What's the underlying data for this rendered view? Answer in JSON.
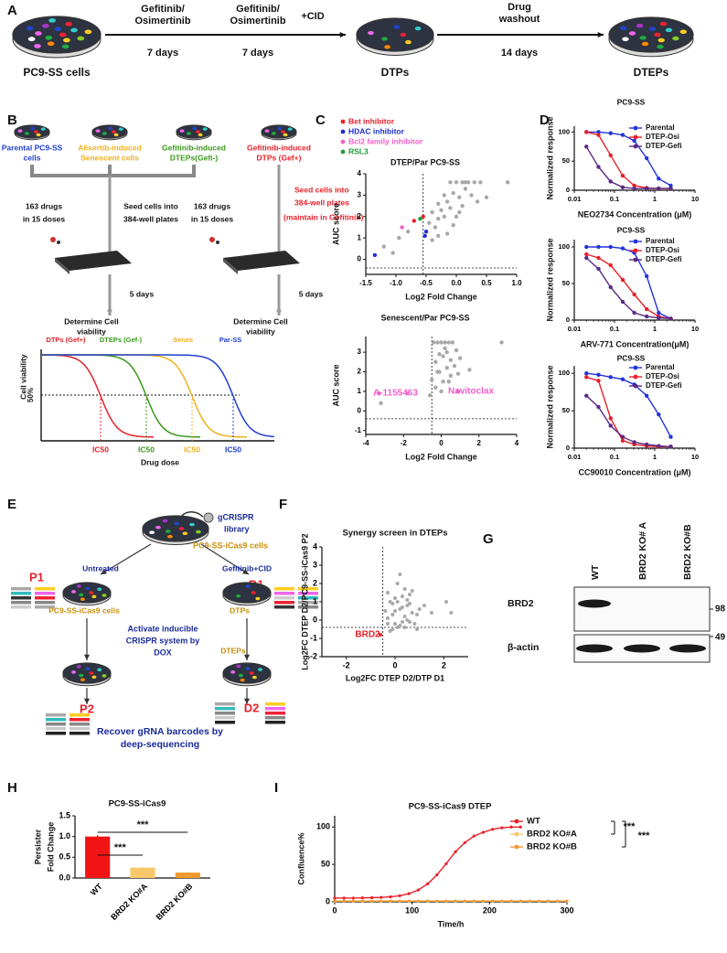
{
  "panel_a": {
    "label": "A",
    "start": "PC9-SS cells",
    "step1": [
      "Gefitinib/",
      "Osimertinib"
    ],
    "step1_time": "7 days",
    "step2": [
      "Gefitinib/",
      "Osimertinib"
    ],
    "step2_extra": "+CID",
    "step2_time": "7 days",
    "step3": [
      "Drug",
      "washout"
    ],
    "step3_time": "14 days",
    "mid": "DTPs",
    "end": "DTEPs"
  },
  "panel_b": {
    "label": "B",
    "groups": [
      [
        "Parental PC9-SS",
        "cells"
      ],
      [
        "Alisertib-induced",
        "Senescent cells"
      ],
      [
        "Gefitinib-induced",
        "DTEPs(Gefi-)"
      ],
      [
        "Gefitinib-induced",
        "DTPs (Gef+)"
      ]
    ],
    "drugs_left": [
      "163 drugs",
      "in 15 doses"
    ],
    "seed_left": [
      "Seed cells into",
      "384-well plates"
    ],
    "drugs_right": [
      "163 drugs",
      "in 15 doses"
    ],
    "seed_right": [
      "Seed cells into",
      "384-well plates",
      "(maintain in Gefitinib)"
    ],
    "days_left": "5 days",
    "days_right": "5 days",
    "determine_left": [
      "Determine Cell",
      "viability"
    ],
    "determine_right": [
      "Determine Cell",
      "viability"
    ],
    "curves": [
      "DTPs (Gef+)",
      "DTEPs (Gef-)",
      "Senes",
      "Par-SS"
    ],
    "ylabel": "Cell viability",
    "half": "50%",
    "ic50": [
      "IC50",
      "IC50",
      "IC50",
      "IC50"
    ],
    "xlabel": "Drug dose"
  },
  "panel_c": {
    "label": "C",
    "charts": [
      {
        "type": "scatter",
        "title": "DTEP/Par PC9-SS",
        "xlabel": "Log2 Fold Change",
        "ylabel": "AUC score",
        "xlim": [
          -1.5,
          1.0
        ],
        "ylim": [
          -0.7,
          4
        ],
        "xticks": [
          -1.5,
          {
            "value": -1,
            "label": "-1.0"
          },
          -0.5,
          {
            "value": 0,
            "label": "0.0"
          },
          0.5,
          {
            "value": 1,
            "label": "1.0"
          }
        ],
        "yticks": [
          0,
          1,
          2,
          3,
          4
        ],
        "ref_x": -0.55,
        "ref_y": -0.4,
        "series": [
          {
            "color": "#a9a9a9",
            "x": [
              -1.2,
              -1.05,
              -0.95,
              -0.8,
              -0.45,
              -0.4,
              -0.35,
              -0.3,
              -0.3,
              -0.25,
              -0.2,
              -0.2,
              -0.15,
              -0.1,
              -0.1,
              -0.05,
              0,
              0,
              0.05,
              0.1,
              0.1,
              0.15,
              0.2,
              0.25,
              0.3,
              0.35,
              0.4,
              -0.15,
              -0.05,
              0.05,
              0.15,
              0.5,
              0.85,
              -0.4,
              -0.3
            ],
            "values": [
              0.6,
              0.3,
              1.0,
              1.3,
              1.7,
              2.2,
              1.5,
              2.6,
              1.9,
              2.3,
              3.0,
              2.0,
              2.7,
              3.6,
              2.4,
              3.1,
              3.6,
              2.0,
              2.9,
              3.6,
              2.5,
              3.3,
              3.6,
              3.0,
              3.6,
              2.7,
              3.6,
              1.2,
              1.6,
              2.2,
              3.6,
              2.9,
              3.6,
              0.9,
              1.1
            ]
          },
          {
            "name": "Bet inhibitor",
            "color": "#e8202a",
            "x": [
              -0.7,
              -0.55
            ],
            "values": [
              1.8,
              2.0
            ]
          },
          {
            "name": "HDAC inhibitor",
            "color": "#1f2fd0",
            "x": [
              -1.35,
              -0.5,
              -0.52
            ],
            "values": [
              0.2,
              1.3,
              1.1
            ]
          },
          {
            "name": "Bcl2 family inhibitor",
            "color": "#f060c8",
            "x": [
              -0.9
            ],
            "values": [
              1.5
            ]
          },
          {
            "name": "RSL3",
            "color": "#1f9a3a",
            "x": [
              -0.6
            ],
            "values": [
              1.9
            ]
          }
        ]
      },
      {
        "type": "scatter",
        "title": "Senescent/Par PC9-SS",
        "xlabel": "Log2 Fold Change",
        "ylabel": "AUC score",
        "xlim": [
          -4,
          4
        ],
        "ylim": [
          -1.2,
          3.8
        ],
        "xticks": [
          -4,
          -2,
          0,
          2,
          4
        ],
        "yticks": [
          -1,
          0,
          1,
          2,
          3
        ],
        "ref_x": -0.5,
        "ref_y": -0.4,
        "series": [
          {
            "color": "#a9a9a9",
            "x": [
              -3.2,
              -1.8,
              -0.5,
              -0.4,
              -0.3,
              -0.2,
              -0.1,
              0,
              0.1,
              0.2,
              0.3,
              0.4,
              0.5,
              0.6,
              -0.3,
              -0.1,
              0.1,
              0.3,
              0.5,
              0.7,
              0.9,
              -0.2,
              0.2,
              0.4,
              1.0,
              1.5,
              3.2,
              -0.6,
              0.0,
              0.8
            ],
            "values": [
              0.4,
              0.9,
              1.6,
              3.5,
              2.5,
              3.5,
              2.0,
              3.5,
              2.8,
              3.5,
              2.2,
              3.5,
              1.8,
              3.5,
              1.2,
              2.9,
              1.5,
              3.0,
              2.6,
              2.3,
              1.9,
              2.0,
              3.2,
              1.5,
              2.7,
              2.1,
              3.5,
              0.8,
              1.0,
              3.1
            ]
          },
          {
            "color": "#f060c8",
            "x": [
              -3.3,
              0.9
            ],
            "values": [
              0.9,
              1.0
            ]
          }
        ],
        "annotations": [
          "A-1155463",
          "Navitoclax"
        ]
      }
    ]
  },
  "panel_d": {
    "label": "D",
    "charts": [
      {
        "type": "line",
        "title": "PC9-SS",
        "xlabel": "NEO2734 Concentration (μM)",
        "ylabel": "Normalized response",
        "log_x": true,
        "markers": true,
        "xlim": [
          0.01,
          10
        ],
        "ylim": [
          0,
          110
        ],
        "xticks": [
          0.01,
          0.1,
          1,
          10
        ],
        "yticks": [
          0,
          50,
          100
        ],
        "x": [
          0.02,
          0.04,
          0.08,
          0.16,
          0.31,
          0.63,
          1.25,
          2.5
        ],
        "series": [
          {
            "name": "Parental",
            "color": "#2233dd",
            "values": [
              100,
              100,
              98,
              95,
              85,
              55,
              20,
              8
            ]
          },
          {
            "name": "DTEP-Osi",
            "color": "#e8202a",
            "values": [
              100,
              95,
              60,
              25,
              8,
              4,
              3,
              3
            ]
          },
          {
            "name": "DTEP-Gefi",
            "color": "#5b2a86",
            "values": [
              75,
              40,
              15,
              5,
              3,
              3,
              3,
              3
            ]
          }
        ]
      },
      {
        "type": "line",
        "title": "PC9-SS",
        "xlabel": "ARV-771 Concentration(μM)",
        "ylabel": "Normalized response",
        "log_x": true,
        "markers": true,
        "xlim": [
          0.01,
          10
        ],
        "ylim": [
          0,
          110
        ],
        "xticks": [
          0.01,
          0.1,
          1,
          10
        ],
        "yticks": [
          0,
          50,
          100
        ],
        "x": [
          0.02,
          0.04,
          0.08,
          0.16,
          0.31,
          0.63,
          1.25,
          2.5
        ],
        "series": [
          {
            "name": "Parental",
            "color": "#2233dd",
            "values": [
              100,
              100,
              100,
              98,
              92,
              60,
              10,
              2
            ]
          },
          {
            "name": "DTEP-Osi",
            "color": "#e8202a",
            "values": [
              90,
              85,
              75,
              55,
              35,
              15,
              5,
              2
            ]
          },
          {
            "name": "DTEP-Gefi",
            "color": "#5b2a86",
            "values": [
              85,
              70,
              45,
              25,
              10,
              5,
              3,
              2
            ]
          }
        ]
      },
      {
        "type": "line",
        "title": "PC9-SS",
        "xlabel": "CC90010 Concentration (μM)",
        "ylabel": "Normalized response",
        "log_x": true,
        "markers": true,
        "xlim": [
          0.01,
          10
        ],
        "ylim": [
          0,
          110
        ],
        "xticks": [
          0.01,
          0.1,
          1,
          10
        ],
        "yticks": [
          0,
          50,
          100
        ],
        "x": [
          0.02,
          0.04,
          0.08,
          0.16,
          0.31,
          0.63,
          1.25,
          2.5
        ],
        "series": [
          {
            "name": "Parental",
            "color": "#2233dd",
            "values": [
              100,
              98,
              95,
              92,
              85,
              70,
              45,
              15
            ]
          },
          {
            "name": "DTEP-Osi",
            "color": "#e8202a",
            "values": [
              95,
              90,
              40,
              10,
              5,
              3,
              2,
              2
            ]
          },
          {
            "name": "DTEP-Gefi",
            "color": "#5b2a86",
            "values": [
              70,
              55,
              30,
              15,
              8,
              5,
              3,
              2
            ]
          }
        ]
      }
    ]
  },
  "panel_e": {
    "label": "E",
    "library": [
      "gCRISPR",
      "library"
    ],
    "cells_top": "PC9-SS-iCas9 cells",
    "untreated": "Untreated",
    "treated": "Gefitinib+CID",
    "p1": "P1",
    "d1": "D1",
    "cells_left": "PC9-SS-iCas9 cells",
    "dtps": "DTPs",
    "activate": [
      "Activate inducible",
      "CRISPR system by",
      "DOX"
    ],
    "dteps": "DTEPs",
    "p2": "P2",
    "d2": "D2",
    "recover": [
      "Recover gRNA barcodes by",
      "deep-sequencing"
    ]
  },
  "panel_f": {
    "label": "F",
    "chart": {
      "type": "scatter",
      "title": "Synergy screen in DTEPs",
      "xlabel": "Log2FC DTEP D2/DTP D1",
      "ylabel": "Log2FC DTEP D2/PC9-SS-iCas9 P2",
      "xlim": [
        -3,
        3
      ],
      "ylim": [
        -2,
        4
      ],
      "xticks": [
        -2,
        0,
        2
      ],
      "yticks": [
        -2,
        -1,
        0,
        1,
        2,
        3,
        4
      ],
      "ref_x": -0.5,
      "ref_y": -0.4,
      "series": [
        {
          "color": "#a9a9a9",
          "x": [
            -0.4,
            -0.3,
            -0.2,
            -0.1,
            0,
            0.1,
            0.2,
            0.3,
            0.4,
            0.5,
            0.6,
            0.7,
            -0.3,
            -0.1,
            0.1,
            0.3,
            0.5,
            0.7,
            0.9,
            -0.2,
            0,
            0.2,
            0.4,
            0.6,
            0.8,
            1.0,
            -0.1,
            0.1,
            0.3,
            0.5,
            1.2,
            1.5,
            0.2,
            0.4,
            -0.3,
            0,
            0.6,
            2.1,
            2.3,
            0.9
          ],
          "values": [
            0.5,
            -0.2,
            1.0,
            0.3,
            1.2,
            -0.4,
            0.6,
            1.3,
            0.2,
            0.8,
            -0.1,
            0.4,
            1.5,
            -0.5,
            2.0,
            0.7,
            1.1,
            1.6,
            0.3,
            -0.6,
            0.5,
            -0.3,
            1.7,
            0.9,
            -0.2,
            0.6,
            0.9,
            1.0,
            -0.1,
            0.0,
            0.8,
            0.4,
            2.5,
            -0.4,
            0.1,
            -0.2,
            1.4,
            1.0,
            0.4,
            -0.5
          ]
        },
        {
          "color": "#e8202a",
          "x": [
            -0.6
          ],
          "values": [
            -0.8
          ]
        }
      ],
      "annotations": [
        "BRD2"
      ]
    }
  },
  "panel_g": {
    "label": "G",
    "lanes": [
      "WT",
      "BRD2 KO# A",
      "BRD2 KO#B"
    ],
    "rows": [
      "BRD2",
      "β-actin"
    ],
    "sizes": [
      98,
      49
    ]
  },
  "panel_h": {
    "label": "H",
    "chart": {
      "type": "bar",
      "title": "PC9-SS-iCas9",
      "ylabel": [
        "Persister",
        "Fold Change"
      ],
      "categories": [
        "WT",
        "BRD2 KO#A",
        "BRD2 KO#B"
      ],
      "values": [
        1.0,
        0.25,
        0.13
      ],
      "errors": [
        0.03,
        0.01,
        0.01
      ],
      "colors": [
        "#f01414",
        "#f8c86a",
        "#f29a2e"
      ],
      "ylim": [
        0,
        1.5
      ],
      "yticks": [
        {
          "value": 0,
          "label": "0.0"
        },
        0.5,
        {
          "value": 1,
          "label": "1.0"
        },
        1.5
      ],
      "significance": [
        "***",
        "***"
      ]
    }
  },
  "panel_i": {
    "label": "I",
    "chart": {
      "type": "line",
      "title": "PC9-SS-iCas9 DTEP",
      "xlabel": "Time/h",
      "ylabel": "Confluence%",
      "xlim": [
        0,
        300
      ],
      "ylim": [
        0,
        115
      ],
      "xticks": [
        0,
        100,
        200,
        300
      ],
      "yticks": [
        0,
        50,
        100
      ],
      "markers": true,
      "x": [
        0,
        12,
        24,
        36,
        48,
        60,
        72,
        84,
        96,
        108,
        120,
        132,
        144,
        156,
        168,
        180,
        192,
        204,
        216,
        228,
        240,
        252,
        264,
        276,
        288,
        300
      ],
      "series": [
        {
          "name": "WT",
          "color": "#e8202a",
          "values": [
            5,
            5,
            5,
            5.3,
            5.5,
            5.9,
            6.6,
            8.1,
            10.9,
            15.8,
            24,
            36,
            51,
            67,
            79,
            88,
            93,
            97,
            99,
            100,
            100,
            null,
            null,
            null,
            null,
            null
          ]
        },
        {
          "name": "BRD2 KO#A",
          "color": "#f8c86a",
          "values": [
            1,
            1,
            1,
            1,
            1,
            1,
            1,
            1,
            1,
            1,
            1,
            1,
            1,
            1,
            1,
            1,
            1,
            1,
            1,
            1,
            1,
            1,
            1,
            1,
            1,
            1
          ]
        },
        {
          "name": "BRD2 KO#B",
          "color": "#f29a2e",
          "values": [
            1,
            1,
            1,
            1,
            1,
            1,
            1,
            1,
            1,
            1,
            1,
            1,
            1,
            1,
            1,
            1,
            1,
            1,
            1,
            1,
            1,
            1,
            1,
            1,
            1,
            1
          ]
        }
      ],
      "significance": [
        "***",
        "***"
      ]
    }
  }
}
